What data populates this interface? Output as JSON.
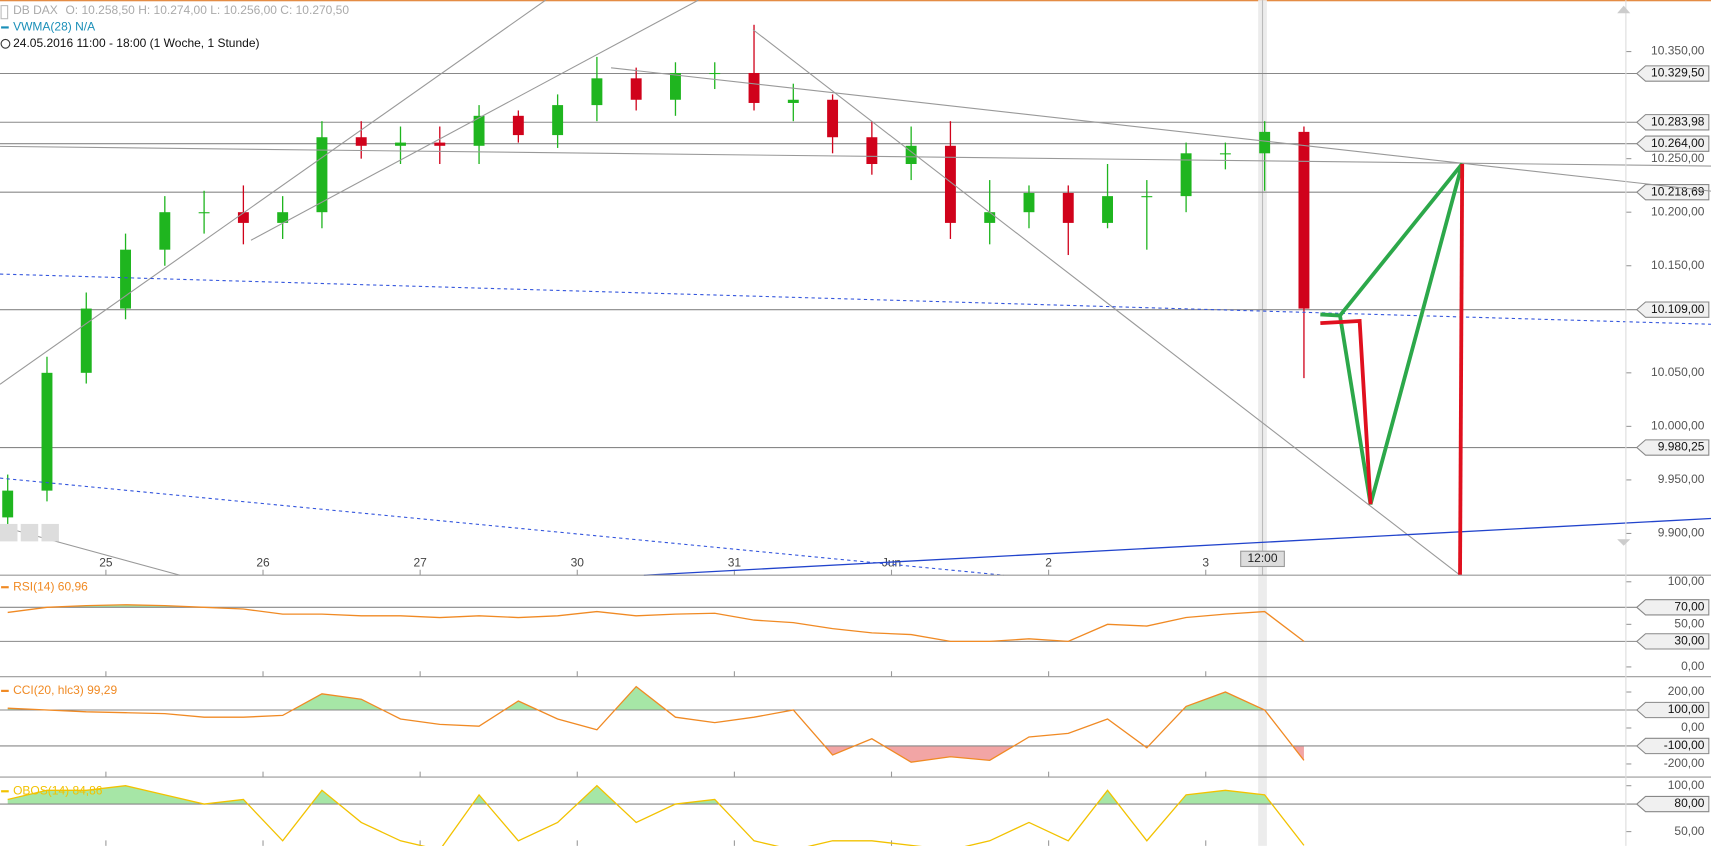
{
  "chart_data": [
    {
      "type": "candlestick",
      "title": "DB DAX",
      "subtitle": "O: 10.258,50  H: 10.274,00  L: 10.256,00  C: 10.270,50",
      "annotations": [
        "VWMA(28)  N/A",
        "24.05.2016 11:00 - 18:00 (1 Woche, 1 Stunde)",
        "12:00"
      ],
      "x": [
        -0.625,
        -0.375,
        -0.125,
        0.125,
        0.375,
        0.625,
        0.875,
        1.125,
        1.375,
        1.625,
        1.875,
        2.125,
        2.375,
        2.625,
        2.875,
        3.125,
        3.375,
        3.625,
        3.875,
        4.125,
        4.375,
        4.625,
        4.875,
        5.125,
        5.375,
        5.625,
        5.875,
        6.125,
        6.375,
        6.625,
        6.875,
        7.125,
        7.375,
        7.625
      ],
      "open": [
        9915,
        9940,
        10050,
        10110,
        10165,
        10200,
        10200,
        10190,
        10200,
        10270,
        10262,
        10265,
        10262,
        10290,
        10272,
        10300,
        10325,
        10305,
        10330,
        10330,
        10302,
        10305,
        10270,
        10245,
        10262,
        10190,
        10200,
        10218,
        10190,
        10215,
        10215,
        10255,
        10255,
        10275
      ],
      "high": [
        9955,
        10065,
        10125,
        10180,
        10215,
        10220,
        10225,
        10215,
        10285,
        10285,
        10280,
        10280,
        10300,
        10295,
        10310,
        10345,
        10335,
        10340,
        10340,
        10375,
        10320,
        10310,
        10285,
        10280,
        10285,
        10230,
        10225,
        10225,
        10245,
        10230,
        10265,
        10265,
        10285,
        10280
      ],
      "low": [
        9905,
        9930,
        10040,
        10100,
        10150,
        10180,
        10170,
        10175,
        10185,
        10250,
        10245,
        10245,
        10245,
        10265,
        10260,
        10285,
        10295,
        10290,
        10315,
        10295,
        10285,
        10255,
        10235,
        10230,
        10175,
        10170,
        10185,
        10160,
        10185,
        10165,
        10200,
        10240,
        10220,
        10045
      ],
      "close": [
        9940,
        10050,
        10110,
        10165,
        10200,
        10200,
        10190,
        10200,
        10270,
        10262,
        10265,
        10262,
        10290,
        10272,
        10300,
        10325,
        10305,
        10330,
        10330,
        10302,
        10305,
        10270,
        10245,
        10262,
        10190,
        10200,
        10218,
        10190,
        10215,
        10215,
        10255,
        10255,
        10275,
        10110
      ],
      "up_color": "#1fb51f",
      "down_color": "#d0021b",
      "xlim": [
        -0.674,
        9.674
      ],
      "xticks": [
        {
          "value": 0,
          "label": "25"
        },
        {
          "value": 1,
          "label": "26"
        },
        {
          "value": 2,
          "label": "27"
        },
        {
          "value": 3,
          "label": "30"
        },
        {
          "value": 4,
          "label": "31"
        },
        {
          "value": 5,
          "label": "Jun"
        },
        {
          "value": 6,
          "label": "2"
        },
        {
          "value": 7,
          "label": "3"
        }
      ],
      "ylim": [
        9861,
        10398
      ],
      "yticks": [
        {
          "value": 9900,
          "label": "9.900,00"
        },
        {
          "value": 9950,
          "label": "9.950,00"
        },
        {
          "value": 10000,
          "label": "10.000,00"
        },
        {
          "value": 10050,
          "label": "10.050,00"
        },
        {
          "value": 10150,
          "label": "10.150,00"
        },
        {
          "value": 10200,
          "label": "10.200,00"
        },
        {
          "value": 10250,
          "label": "10.250,00"
        },
        {
          "value": 10350,
          "label": "10.350,00"
        }
      ],
      "levels": [
        {
          "value": 10329.5,
          "label": "10.329,50"
        },
        {
          "value": 10283.98,
          "label": "10.283,98"
        },
        {
          "value": 10264,
          "label": "10.264,00"
        },
        {
          "value": 10218.69,
          "label": "10.218,69"
        },
        {
          "value": 10109,
          "label": "10.109,00"
        },
        {
          "value": 9980.25,
          "label": "9.980,25"
        }
      ],
      "level_color": "#888888"
    },
    {
      "type": "line",
      "title": "RSI(14)  60,96",
      "color": "#f08a24",
      "values": [
        64,
        70,
        72,
        73,
        72,
        70,
        68,
        62,
        62,
        60,
        60,
        58,
        60,
        58,
        60,
        65,
        60,
        62,
        63,
        55,
        52,
        45,
        40,
        38,
        30,
        30,
        33,
        30,
        50,
        48,
        58,
        62,
        65,
        30
      ],
      "ylim": [
        -11.5,
        107.7
      ],
      "yticks": [
        {
          "value": 100,
          "label": "100,00"
        },
        {
          "value": 50,
          "label": "50,00"
        },
        {
          "value": 0,
          "label": "0,00"
        }
      ],
      "levels": [
        {
          "value": 70,
          "label": "70,00"
        },
        {
          "value": 30,
          "label": "30,00"
        }
      ],
      "upper_fill": "#a6e6a6",
      "lower_fill": "#f2a5a5"
    },
    {
      "type": "line",
      "title": "CCI(20, hlc3)  99,29",
      "color": "#f08a24",
      "values": [
        110,
        100,
        90,
        85,
        80,
        60,
        60,
        70,
        190,
        160,
        50,
        20,
        10,
        150,
        50,
        -10,
        230,
        60,
        30,
        60,
        100,
        -150,
        -60,
        -190,
        -160,
        -180,
        -50,
        -30,
        50,
        -110,
        120,
        200,
        100,
        -180
      ],
      "ylim": [
        -273,
        273
      ],
      "yticks": [
        {
          "value": 200,
          "label": "200,00"
        },
        {
          "value": 0,
          "label": "0,00"
        },
        {
          "value": -200,
          "label": "-200,00"
        }
      ],
      "levels": [
        {
          "value": 100,
          "label": "100,00"
        },
        {
          "value": -100,
          "label": "-100,00"
        }
      ],
      "upper_fill": "#a6e6a6",
      "lower_fill": "#f2a5a5"
    },
    {
      "type": "line",
      "title": "OBOS(14)  84,86",
      "color": "#f2c200",
      "values": [
        85,
        95,
        95,
        100,
        90,
        80,
        85,
        40,
        95,
        60,
        40,
        30,
        90,
        40,
        60,
        100,
        60,
        80,
        85,
        40,
        30,
        40,
        40,
        35,
        30,
        40,
        60,
        40,
        95,
        40,
        90,
        95,
        90,
        35
      ],
      "ylim": [
        34.5,
        107
      ],
      "yticks": [
        {
          "value": 100,
          "label": "100,00"
        },
        {
          "value": 50,
          "label": "50,00"
        }
      ],
      "levels": [
        {
          "value": 80,
          "label": "80,00"
        }
      ],
      "upper_fill": "#a6e6a6"
    }
  ]
}
